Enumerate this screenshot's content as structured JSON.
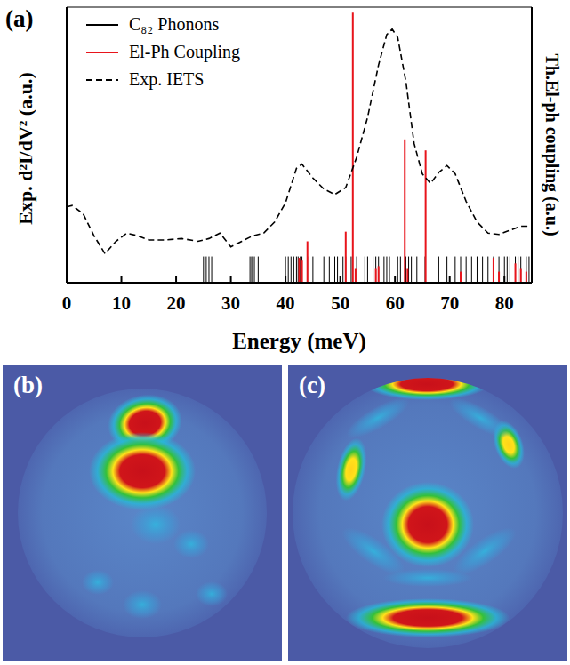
{
  "chart_data": {
    "type": "line",
    "panel_label": "(a)",
    "x_label": "Energy (meV)",
    "y_label": "Exp. d²I/dV² (a.u.)",
    "y2_label": "Th.El-ph coupling (a.u.)",
    "xlim": [
      0,
      85
    ],
    "xticks": [
      0,
      10,
      20,
      30,
      40,
      50,
      60,
      70,
      80
    ],
    "ylim": [
      0,
      10
    ],
    "y2lim": [
      0,
      10
    ],
    "tick_labels": "x",
    "grid": false,
    "legend": "top-left",
    "series": [
      {
        "name": "C₈₂ Phonons",
        "color": "#000000",
        "type": "stem",
        "line_style": "solid",
        "x": [
          25,
          25.5,
          26,
          26.5,
          33.5,
          33.8,
          34,
          34.3,
          35,
          40,
          40.5,
          41,
          41.5,
          42,
          42.3,
          42.7,
          43,
          44,
          45,
          47,
          48,
          49,
          49.5,
          50.5,
          51,
          52,
          53,
          54.5,
          55,
          56,
          56.5,
          57,
          58,
          58.5,
          59,
          60.5,
          61,
          62,
          62.5,
          63,
          64,
          65.5,
          68,
          69.5,
          71,
          72,
          73,
          74,
          75,
          76,
          77,
          78,
          79,
          80,
          80.5,
          81,
          82,
          82.5,
          83,
          84,
          84.5
        ],
        "values": [
          0.95,
          0.95,
          0.95,
          0.95,
          0.95,
          0.95,
          0.95,
          0.95,
          0.95,
          0.95,
          0.95,
          0.95,
          0.95,
          0.95,
          0.95,
          0.95,
          0.95,
          0.95,
          0.95,
          0.95,
          0.95,
          0.95,
          0.95,
          0.95,
          0.95,
          0.95,
          0.95,
          0.95,
          0.95,
          0.95,
          0.95,
          0.95,
          0.95,
          0.95,
          0.95,
          0.95,
          0.95,
          0.95,
          0.95,
          0.95,
          0.95,
          0.95,
          0.95,
          0.95,
          0.95,
          0.95,
          0.95,
          0.95,
          0.95,
          0.95,
          0.95,
          0.95,
          0.95,
          0.95,
          0.95,
          0.95,
          0.95,
          0.95,
          0.95,
          0.95,
          0.95
        ]
      },
      {
        "name": "El-Ph Coupling",
        "color": "#e8141b",
        "type": "stem",
        "line_style": "solid",
        "axis": "y2",
        "x": [
          42.5,
          43,
          44,
          51,
          52.3,
          52.8,
          56.5,
          57,
          61.8,
          62.3,
          65.6,
          72,
          78,
          79,
          82,
          83,
          84
        ],
        "values": [
          0.9,
          0.8,
          1.5,
          1.85,
          9.8,
          0.5,
          0.5,
          0.6,
          5.2,
          0.5,
          4.8,
          0.4,
          0.9,
          0.4,
          0.7,
          0.5,
          0.4
        ]
      },
      {
        "name": "Exp. IETS",
        "color": "#000000",
        "type": "line",
        "line_style": "dashed",
        "x": [
          0,
          1,
          3,
          5,
          7,
          9,
          11,
          13,
          15,
          18,
          21,
          24,
          26,
          28,
          30,
          32,
          34,
          36,
          38,
          40,
          42,
          43,
          45,
          47,
          49,
          51,
          53,
          55,
          57,
          58.5,
          59.5,
          60.5,
          62,
          63.5,
          65,
          66.5,
          68,
          69.5,
          71,
          73,
          75,
          77,
          79,
          81,
          83,
          85
        ],
        "values": [
          2.75,
          2.8,
          2.5,
          1.7,
          1.05,
          1.5,
          1.8,
          1.7,
          1.55,
          1.55,
          1.6,
          1.5,
          1.6,
          1.8,
          1.3,
          1.5,
          1.7,
          1.8,
          2.2,
          2.9,
          4.15,
          4.3,
          3.8,
          3.4,
          3.2,
          3.45,
          4.55,
          6.0,
          7.9,
          9.0,
          9.2,
          8.9,
          7.3,
          5.05,
          3.95,
          3.6,
          4.0,
          4.25,
          3.95,
          2.95,
          2.2,
          1.8,
          1.75,
          1.9,
          2.05,
          2.05
        ]
      }
    ]
  },
  "images": [
    {
      "label": "(b)"
    },
    {
      "label": "(c)"
    }
  ]
}
